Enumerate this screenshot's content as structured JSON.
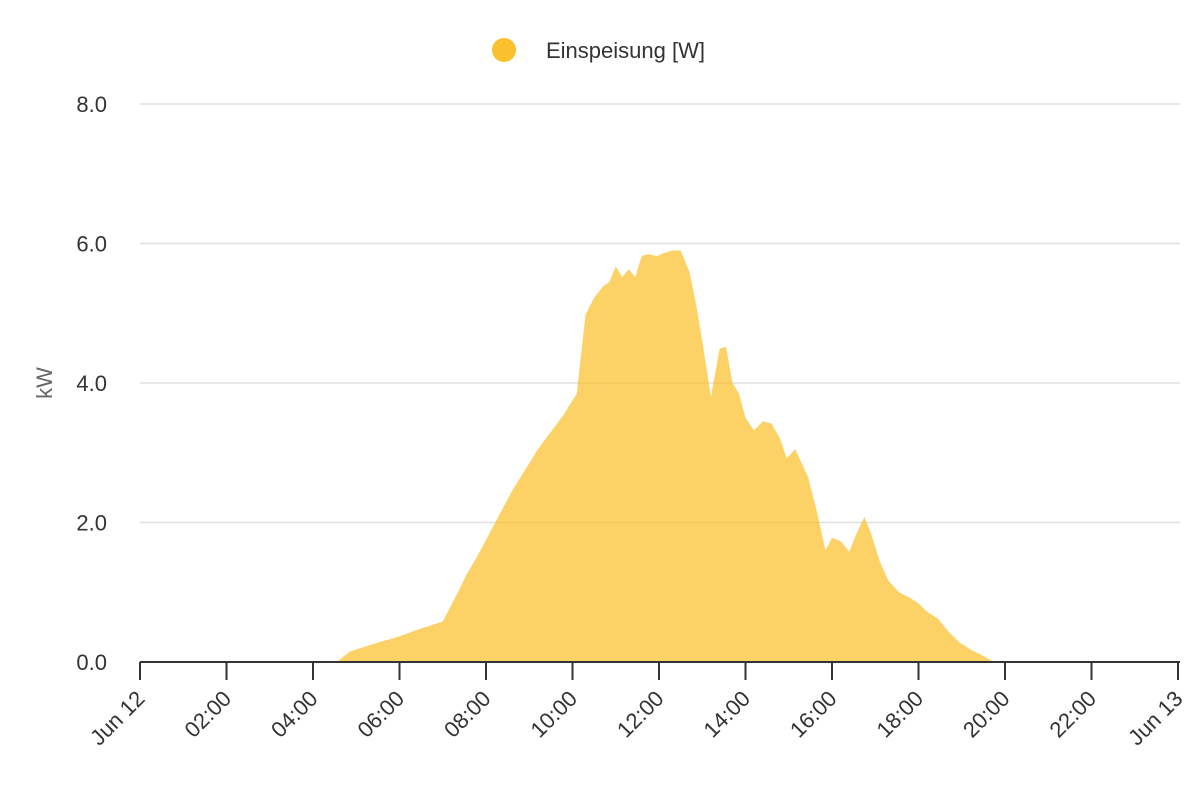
{
  "chart_data": {
    "type": "area",
    "legend": {
      "position": "top-center",
      "entries": [
        {
          "label": "Einspeisung [W]",
          "color": "#fbc02d"
        }
      ]
    },
    "ylabel": "kW",
    "xlabel": "",
    "ylim": [
      0,
      8
    ],
    "yticks": [
      "0.0",
      "2.0",
      "4.0",
      "6.0",
      "8.0"
    ],
    "yticks_values": [
      0,
      2,
      4,
      6,
      8
    ],
    "xlim": [
      0,
      24
    ],
    "xticks": [
      "Jun 12",
      "02:00",
      "04:00",
      "06:00",
      "08:00",
      "10:00",
      "12:00",
      "14:00",
      "16:00",
      "18:00",
      "20:00",
      "22:00",
      "Jun 13"
    ],
    "xticks_values": [
      0,
      2,
      4,
      6,
      8,
      10,
      12,
      14,
      16,
      18,
      20,
      22,
      24
    ],
    "grid": true,
    "fill_color": "#fbc02d",
    "fill_opacity": 0.72,
    "series": [
      {
        "name": "Einspeisung [W]",
        "x": [
          0,
          4.55,
          4.65,
          4.85,
          5.2,
          5.5,
          5.8,
          6.1,
          6.4,
          6.7,
          7.0,
          7.35,
          7.55,
          7.8,
          8.0,
          8.3,
          8.6,
          8.9,
          9.2,
          9.5,
          9.8,
          10.1,
          10.3,
          10.4,
          10.5,
          10.7,
          10.85,
          11.0,
          11.15,
          11.3,
          11.45,
          11.6,
          11.75,
          11.95,
          12.1,
          12.3,
          12.5,
          12.7,
          12.85,
          13.0,
          13.2,
          13.4,
          13.55,
          13.7,
          13.85,
          14.0,
          14.2,
          14.4,
          14.6,
          14.8,
          14.95,
          15.15,
          15.3,
          15.45,
          15.65,
          15.85,
          16.0,
          16.2,
          16.4,
          16.55,
          16.75,
          16.9,
          17.1,
          17.3,
          17.55,
          17.8,
          18.0,
          18.2,
          18.45,
          18.7,
          18.95,
          19.2,
          19.45,
          19.7,
          19.72,
          24
        ],
        "values": [
          0,
          0,
          0.05,
          0.15,
          0.22,
          0.28,
          0.33,
          0.39,
          0.46,
          0.52,
          0.58,
          1.0,
          1.25,
          1.52,
          1.75,
          2.1,
          2.45,
          2.75,
          3.05,
          3.3,
          3.55,
          3.85,
          4.98,
          5.1,
          5.22,
          5.38,
          5.45,
          5.67,
          5.52,
          5.63,
          5.52,
          5.82,
          5.85,
          5.82,
          5.86,
          5.9,
          5.9,
          5.6,
          5.15,
          4.6,
          3.8,
          4.49,
          4.52,
          4.0,
          3.85,
          3.5,
          3.32,
          3.45,
          3.42,
          3.2,
          2.92,
          3.05,
          2.85,
          2.65,
          2.15,
          1.6,
          1.78,
          1.73,
          1.58,
          1.82,
          2.08,
          1.85,
          1.45,
          1.17,
          1.0,
          0.92,
          0.84,
          0.72,
          0.62,
          0.43,
          0.28,
          0.18,
          0.1,
          0.02,
          0,
          0
        ]
      }
    ]
  }
}
